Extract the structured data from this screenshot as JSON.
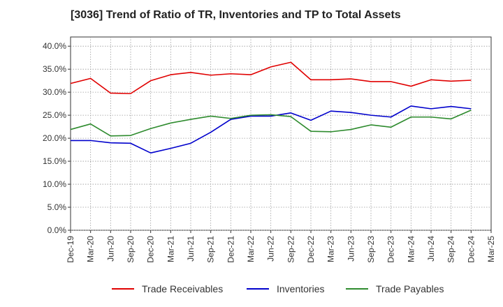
{
  "chart_data": {
    "type": "line",
    "title": "[3036]  Trend of Ratio of TR, Inventories and TP to Total Assets",
    "xlabel": "",
    "ylabel": "",
    "x_ticks": [
      "Dec-19",
      "Mar-20",
      "Jun-20",
      "Sep-20",
      "Dec-20",
      "Mar-21",
      "Jun-21",
      "Sep-21",
      "Dec-21",
      "Mar-22",
      "Jun-22",
      "Sep-22",
      "Dec-22",
      "Mar-23",
      "Jun-23",
      "Sep-23",
      "Dec-23",
      "Mar-24",
      "Jun-24",
      "Sep-24",
      "Dec-24",
      "Mar-25"
    ],
    "y_ticks": [
      "0.0%",
      "5.0%",
      "10.0%",
      "15.0%",
      "20.0%",
      "25.0%",
      "30.0%",
      "35.0%",
      "40.0%"
    ],
    "ylim": [
      0,
      42
    ],
    "grid": true,
    "legend_position": "bottom",
    "categories": [
      "Dec-19",
      "Mar-20",
      "Jun-20",
      "Sep-20",
      "Dec-20",
      "Mar-21",
      "Jun-21",
      "Sep-21",
      "Dec-21",
      "Mar-22",
      "Jun-22",
      "Sep-22",
      "Dec-22",
      "Mar-23",
      "Jun-23",
      "Sep-23",
      "Dec-23",
      "Mar-24",
      "Jun-24",
      "Sep-24",
      "Dec-24"
    ],
    "series": [
      {
        "name": "Trade Receivables",
        "color": "#e00000",
        "values": [
          31.9,
          33.0,
          29.8,
          29.7,
          32.5,
          33.8,
          34.3,
          33.7,
          34.0,
          33.8,
          35.5,
          36.5,
          32.7,
          32.7,
          32.9,
          32.3,
          32.3,
          31.3,
          32.7,
          32.4,
          32.6
        ]
      },
      {
        "name": "Inventories",
        "color": "#0000cc",
        "values": [
          19.5,
          19.5,
          19.0,
          18.9,
          16.8,
          17.8,
          18.9,
          21.3,
          24.1,
          24.8,
          24.8,
          25.5,
          23.9,
          25.9,
          25.6,
          25.0,
          24.6,
          27.0,
          26.4,
          26.9,
          26.4
        ]
      },
      {
        "name": "Trade Payables",
        "color": "#2e8b2e",
        "values": [
          21.9,
          23.1,
          20.5,
          20.6,
          22.1,
          23.3,
          24.1,
          24.8,
          24.3,
          25.0,
          25.1,
          24.7,
          21.5,
          21.4,
          21.9,
          22.9,
          22.4,
          24.6,
          24.6,
          24.2,
          26.1
        ]
      }
    ]
  }
}
